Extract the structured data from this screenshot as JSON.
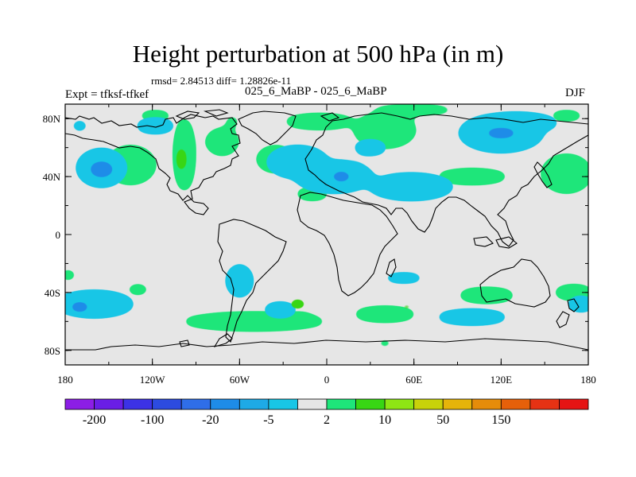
{
  "title": "Height perturbation at 500 hPa (in m)",
  "stats": "rmsd= 2.84513 diff= 1.28826e-11",
  "left_label": "Expt = tfksf-tfkef",
  "center_label": "025_6_MaBP - 025_6_MaBP",
  "right_label": "DJF",
  "lat_ticks": [
    {
      "lat": 80,
      "label": "80N"
    },
    {
      "lat": 40,
      "label": "40N"
    },
    {
      "lat": 0,
      "label": "0"
    },
    {
      "lat": -40,
      "label": "40S"
    },
    {
      "lat": -80,
      "label": "80S"
    }
  ],
  "lon_ticks": [
    {
      "lon": -180,
      "label": "180"
    },
    {
      "lon": -120,
      "label": "120W"
    },
    {
      "lon": -60,
      "label": "60W"
    },
    {
      "lon": 0,
      "label": "0"
    },
    {
      "lon": 60,
      "label": "60E"
    },
    {
      "lon": 120,
      "label": "120E"
    },
    {
      "lon": 180,
      "label": "180"
    }
  ],
  "colorbar": {
    "colors": [
      "#8c1ee6",
      "#6a1ee6",
      "#3c32e6",
      "#2c4be0",
      "#2f6ee8",
      "#1e8ce8",
      "#1eaae6",
      "#18c6e6",
      "#e6e6e6",
      "#1ee67a",
      "#38d614",
      "#8ee614",
      "#c8d20a",
      "#e6b40a",
      "#e68c0a",
      "#e6600a",
      "#e63214",
      "#e61414"
    ],
    "labels": [
      "-200",
      "-100",
      "-20",
      "-5",
      "2",
      "10",
      "50",
      "150"
    ]
  },
  "fields": {
    "positive": [
      [
        -178,
        62,
        0,
        4
      ],
      [
        -170,
        78,
        3,
        4
      ],
      [
        -135,
        48,
        18,
        14
      ],
      [
        -98,
        55,
        8,
        26
      ],
      [
        -118,
        82,
        12,
        4
      ],
      [
        -65,
        78,
        5,
        4
      ],
      [
        -72,
        64,
        12,
        10
      ],
      [
        -35,
        52,
        14,
        10
      ],
      [
        -5,
        78,
        25,
        6
      ],
      [
        -10,
        28,
        12,
        5
      ],
      [
        40,
        72,
        22,
        13
      ],
      [
        60,
        86,
        28,
        4
      ],
      [
        100,
        40,
        25,
        6
      ],
      [
        165,
        42,
        18,
        14
      ],
      [
        165,
        82,
        12,
        4
      ],
      [
        -178,
        -28,
        6,
        4
      ],
      [
        -130,
        -38,
        8,
        4
      ],
      [
        -50,
        -60,
        50,
        7
      ],
      [
        -20,
        -57,
        12,
        4
      ],
      [
        40,
        -55,
        22,
        6
      ],
      [
        110,
        -42,
        20,
        6
      ],
      [
        170,
        -40,
        14,
        6
      ],
      [
        40,
        -75,
        6,
        3
      ]
    ],
    "negative": [
      [
        -155,
        46,
        18,
        14
      ],
      [
        -118,
        75,
        14,
        6
      ],
      [
        -170,
        75,
        6,
        4
      ],
      [
        -20,
        50,
        22,
        12
      ],
      [
        5,
        40,
        28,
        12
      ],
      [
        30,
        60,
        12,
        6
      ],
      [
        58,
        33,
        30,
        10
      ],
      [
        120,
        70,
        30,
        14
      ],
      [
        130,
        77,
        30,
        8
      ],
      [
        -160,
        -48,
        28,
        10
      ],
      [
        -60,
        -32,
        10,
        12
      ],
      [
        -32,
        -52,
        12,
        6
      ],
      [
        53,
        -30,
        14,
        4
      ],
      [
        100,
        -57,
        25,
        6
      ],
      [
        175,
        -48,
        10,
        6
      ],
      [
        32,
        -18,
        1.5,
        2
      ]
    ],
    "strong_negative": [
      [
        -155,
        45,
        9,
        6
      ],
      [
        10,
        40,
        8,
        4
      ],
      [
        120,
        70,
        12,
        4
      ],
      [
        -170,
        -50,
        8,
        4
      ]
    ],
    "strong_positive": [
      [
        -100,
        52,
        4,
        10
      ],
      [
        -20,
        -48,
        7,
        4
      ],
      [
        55,
        -50,
        6,
        3
      ]
    ]
  }
}
